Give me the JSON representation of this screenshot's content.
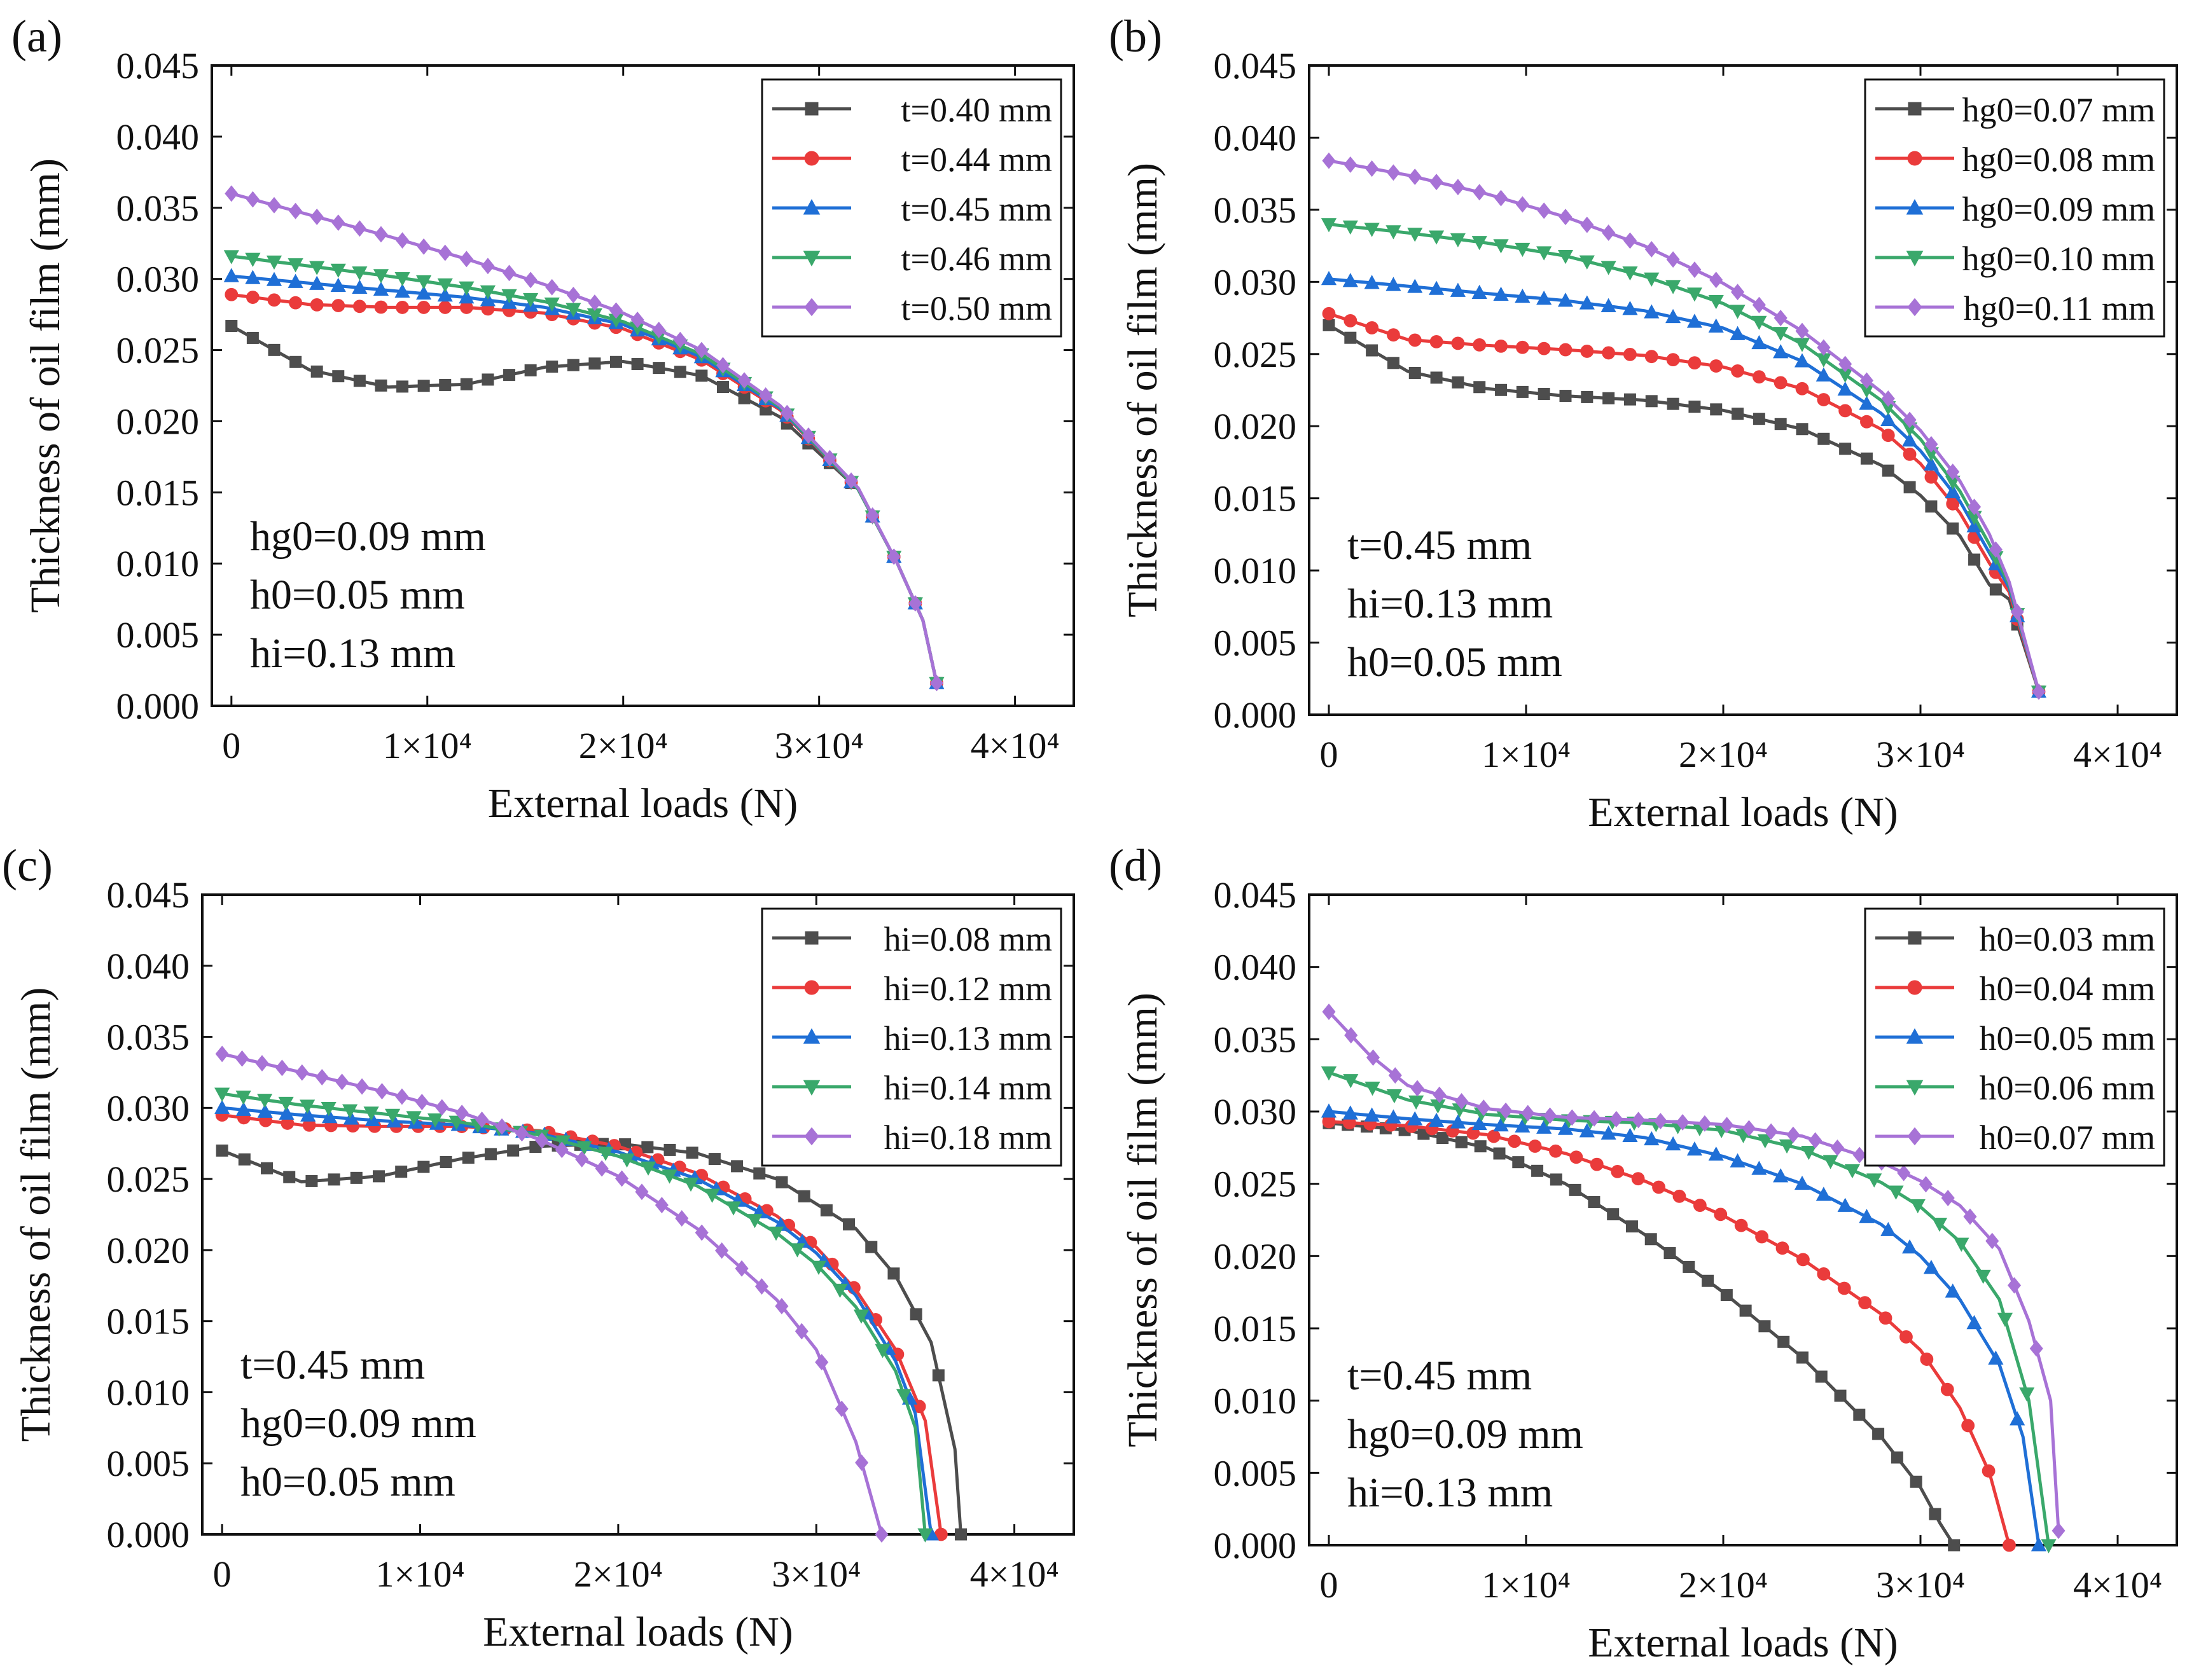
{
  "figure": {
    "xlabel": "External loads (N)",
    "ylabel": "Thickness of oil film (mm)"
  },
  "chart_data": [
    {
      "panel": "(a)",
      "type": "line",
      "xlabel": "External loads (N)",
      "ylabel": "Thickness of oil film (mm)",
      "xlim": [
        -1000,
        43000
      ],
      "ylim": [
        0,
        0.045
      ],
      "xticks": [
        0,
        10000,
        20000,
        30000,
        40000
      ],
      "xtick_labels": [
        "0",
        "1×10⁴",
        "2×10⁴",
        "3×10⁴",
        "4×10⁴"
      ],
      "yticks": [
        0,
        0.005,
        0.01,
        0.015,
        0.02,
        0.025,
        0.03,
        0.035,
        0.04,
        0.045
      ],
      "ytick_labels": [
        "0.000",
        "0.005",
        "0.010",
        "0.015",
        "0.020",
        "0.025",
        "0.030",
        "0.035",
        "0.040",
        "0.045"
      ],
      "annotation": [
        "hg0=0.09 mm",
        "h0=0.05 mm",
        "hi=0.13 mm"
      ],
      "series": [
        {
          "name": "t=0.40 mm",
          "color": "#4d4d4d",
          "marker": "square",
          "x": [
            0,
            4000,
            8000,
            12000,
            16000,
            20000,
            24000,
            28000,
            32000,
            34000,
            35300,
            36000
          ],
          "y": [
            0.0267,
            0.0236,
            0.0224,
            0.0226,
            0.0238,
            0.0242,
            0.0232,
            0.0203,
            0.0152,
            0.01,
            0.006,
            0.0016
          ]
        },
        {
          "name": "t=0.44 mm",
          "color": "#ea3b3b",
          "marker": "circle",
          "x": [
            0,
            4000,
            8000,
            12000,
            16000,
            20000,
            24000,
            28000,
            32000,
            34000,
            35300,
            36000
          ],
          "y": [
            0.0289,
            0.0282,
            0.028,
            0.028,
            0.0276,
            0.0265,
            0.0243,
            0.0208,
            0.0152,
            0.01,
            0.006,
            0.0016
          ]
        },
        {
          "name": "t=0.45 mm",
          "color": "#1f6fd6",
          "marker": "triangle",
          "x": [
            0,
            4000,
            8000,
            12000,
            16000,
            20000,
            24000,
            28000,
            32000,
            34000,
            35300,
            36000
          ],
          "y": [
            0.0302,
            0.0297,
            0.0292,
            0.0287,
            0.028,
            0.0268,
            0.0245,
            0.0209,
            0.0152,
            0.01,
            0.006,
            0.0016
          ]
        },
        {
          "name": "t=0.46 mm",
          "color": "#3aa86b",
          "marker": "triangle-down",
          "x": [
            0,
            4000,
            8000,
            12000,
            16000,
            20000,
            24000,
            28000,
            32000,
            34000,
            35300,
            36000
          ],
          "y": [
            0.0316,
            0.0309,
            0.0302,
            0.0294,
            0.0284,
            0.027,
            0.0247,
            0.021,
            0.0152,
            0.01,
            0.006,
            0.0016
          ]
        },
        {
          "name": "t=0.50 mm",
          "color": "#a772d6",
          "marker": "diamond",
          "x": [
            0,
            4000,
            8000,
            12000,
            16000,
            20000,
            24000,
            28000,
            32000,
            34000,
            35300,
            36000
          ],
          "y": [
            0.036,
            0.0345,
            0.033,
            0.0314,
            0.0296,
            0.0276,
            0.025,
            0.0211,
            0.0153,
            0.01,
            0.006,
            0.0016
          ]
        }
      ]
    },
    {
      "panel": "(b)",
      "type": "line",
      "xlabel": "External loads (N)",
      "ylabel": "Thickness of oil film (mm)",
      "xlim": [
        -1000,
        43000
      ],
      "ylim": [
        0,
        0.045
      ],
      "xticks": [
        0,
        10000,
        20000,
        30000,
        40000
      ],
      "xtick_labels": [
        "0",
        "1×10⁴",
        "2×10⁴",
        "3×10⁴",
        "4×10⁴"
      ],
      "yticks": [
        0,
        0.005,
        0.01,
        0.015,
        0.02,
        0.025,
        0.03,
        0.035,
        0.04,
        0.045
      ],
      "ytick_labels": [
        "0.000",
        "0.005",
        "0.010",
        "0.015",
        "0.020",
        "0.025",
        "0.030",
        "0.035",
        "0.040",
        "0.045"
      ],
      "annotation": [
        "t=0.45 mm",
        "hi=0.13 mm",
        "h0=0.05 mm"
      ],
      "series": [
        {
          "name": "hg0=0.07 mm",
          "color": "#4d4d4d",
          "marker": "square",
          "x": [
            0,
            4000,
            8000,
            12000,
            16000,
            20000,
            24000,
            28000,
            30000,
            32000,
            33500,
            34500,
            36000
          ],
          "y": [
            0.027,
            0.0238,
            0.0226,
            0.0221,
            0.0218,
            0.0211,
            0.0198,
            0.0173,
            0.0152,
            0.0124,
            0.009,
            0.008,
            0.0016
          ]
        },
        {
          "name": "hg0=0.08 mm",
          "color": "#ea3b3b",
          "marker": "circle",
          "x": [
            0,
            4000,
            8000,
            12000,
            16000,
            20000,
            24000,
            28000,
            30000,
            32000,
            33500,
            34500,
            36000
          ],
          "y": [
            0.0278,
            0.026,
            0.0256,
            0.0253,
            0.0249,
            0.0241,
            0.0226,
            0.0198,
            0.0174,
            0.014,
            0.0105,
            0.0085,
            0.0016
          ]
        },
        {
          "name": "hg0=0.09 mm",
          "color": "#1f6fd6",
          "marker": "triangle",
          "x": [
            0,
            4000,
            8000,
            12000,
            16000,
            20000,
            24000,
            28000,
            30000,
            32000,
            33500,
            34500,
            36000
          ],
          "y": [
            0.0302,
            0.0297,
            0.0292,
            0.0287,
            0.028,
            0.0268,
            0.0245,
            0.0209,
            0.0183,
            0.0148,
            0.0112,
            0.0088,
            0.0016
          ]
        },
        {
          "name": "hg0=0.10 mm",
          "color": "#3aa86b",
          "marker": "triangle-down",
          "x": [
            0,
            4000,
            8000,
            12000,
            16000,
            20000,
            24000,
            28000,
            30000,
            32000,
            33500,
            34500,
            36000
          ],
          "y": [
            0.034,
            0.0334,
            0.0327,
            0.0318,
            0.0304,
            0.0285,
            0.0257,
            0.0218,
            0.0191,
            0.0155,
            0.0118,
            0.009,
            0.0016
          ]
        },
        {
          "name": "hg0=0.11 mm",
          "color": "#a772d6",
          "marker": "diamond",
          "x": [
            0,
            4000,
            8000,
            12000,
            16000,
            20000,
            24000,
            28000,
            30000,
            32000,
            33500,
            34500,
            36000
          ],
          "y": [
            0.0384,
            0.0374,
            0.0361,
            0.0345,
            0.0325,
            0.0299,
            0.0266,
            0.0224,
            0.0197,
            0.0162,
            0.0125,
            0.0092,
            0.0016
          ]
        }
      ]
    },
    {
      "panel": "(c)",
      "type": "line",
      "xlabel": "External loads (N)",
      "ylabel": "Thickness of oil film (mm)",
      "xlim": [
        -1000,
        43000
      ],
      "ylim": [
        0,
        0.045
      ],
      "xticks": [
        0,
        10000,
        20000,
        30000,
        40000
      ],
      "xtick_labels": [
        "0",
        "1×10⁴",
        "2×10⁴",
        "3×10⁴",
        "4×10⁴"
      ],
      "yticks": [
        0,
        0.005,
        0.01,
        0.015,
        0.02,
        0.025,
        0.03,
        0.035,
        0.04,
        0.045
      ],
      "ytick_labels": [
        "0.000",
        "0.005",
        "0.010",
        "0.015",
        "0.020",
        "0.025",
        "0.030",
        "0.035",
        "0.040",
        "0.045"
      ],
      "annotation": [
        "t=0.45 mm",
        "hg0=0.09 mm",
        "h0=0.05 mm"
      ],
      "series": [
        {
          "name": "hi=0.08 mm",
          "color": "#4d4d4d",
          "marker": "square",
          "x": [
            0,
            4000,
            8000,
            12000,
            16000,
            20000,
            24000,
            28000,
            32000,
            34000,
            35800,
            37000,
            37300
          ],
          "y": [
            0.027,
            0.0248,
            0.0252,
            0.0264,
            0.0273,
            0.0275,
            0.0268,
            0.025,
            0.0215,
            0.0182,
            0.0135,
            0.006,
            0.0
          ]
        },
        {
          "name": "hi=0.12 mm",
          "color": "#ea3b3b",
          "marker": "circle",
          "x": [
            0,
            4000,
            8000,
            12000,
            16000,
            20000,
            24000,
            28000,
            30000,
            32000,
            34000,
            35500,
            36300
          ],
          "y": [
            0.0295,
            0.0288,
            0.0287,
            0.0287,
            0.0284,
            0.0273,
            0.0254,
            0.0224,
            0.0202,
            0.0172,
            0.013,
            0.008,
            0.0
          ]
        },
        {
          "name": "hi=0.13 mm",
          "color": "#1f6fd6",
          "marker": "triangle",
          "x": [
            0,
            4000,
            8000,
            12000,
            16000,
            20000,
            24000,
            28000,
            30000,
            32000,
            34000,
            35000,
            35800
          ],
          "y": [
            0.03,
            0.0295,
            0.0291,
            0.0288,
            0.0282,
            0.0269,
            0.025,
            0.022,
            0.0198,
            0.0168,
            0.0122,
            0.0085,
            0.0
          ]
        },
        {
          "name": "hi=0.14 mm",
          "color": "#3aa86b",
          "marker": "triangle-down",
          "x": [
            0,
            4000,
            8000,
            12000,
            16000,
            20000,
            24000,
            28000,
            30000,
            32000,
            34000,
            35000,
            35500
          ],
          "y": [
            0.031,
            0.0302,
            0.0296,
            0.029,
            0.0281,
            0.0266,
            0.0245,
            0.0212,
            0.019,
            0.016,
            0.0115,
            0.0075,
            0.0
          ]
        },
        {
          "name": "hi=0.18 mm",
          "color": "#a772d6",
          "marker": "diamond",
          "x": [
            0,
            4000,
            8000,
            12000,
            16000,
            20000,
            24000,
            28000,
            30000,
            32000,
            33300
          ],
          "y": [
            0.0338,
            0.0325,
            0.0312,
            0.0297,
            0.0278,
            0.0252,
            0.0215,
            0.0165,
            0.013,
            0.0065,
            0.0
          ]
        }
      ]
    },
    {
      "panel": "(d)",
      "type": "line",
      "xlabel": "External loads (N)",
      "ylabel": "Thickness of oil film (mm)",
      "xlim": [
        -1000,
        43000
      ],
      "ylim": [
        0,
        0.045
      ],
      "xticks": [
        0,
        10000,
        20000,
        30000,
        40000
      ],
      "xtick_labels": [
        "0",
        "1×10⁴",
        "2×10⁴",
        "3×10⁴",
        "4×10⁴"
      ],
      "yticks": [
        0,
        0.005,
        0.01,
        0.015,
        0.02,
        0.025,
        0.03,
        0.035,
        0.04,
        0.045
      ],
      "ytick_labels": [
        "0.000",
        "0.005",
        "0.010",
        "0.015",
        "0.020",
        "0.025",
        "0.030",
        "0.035",
        "0.040",
        "0.045"
      ],
      "annotation": [
        "t=0.45 mm",
        "hg0=0.09 mm",
        "hi=0.13 mm"
      ],
      "series": [
        {
          "name": "h0=0.03 mm",
          "color": "#4d4d4d",
          "marker": "square",
          "x": [
            0,
            4000,
            8000,
            12000,
            16000,
            20000,
            24000,
            28000,
            30000,
            31000,
            31700
          ],
          "y": [
            0.0292,
            0.0287,
            0.0275,
            0.025,
            0.0215,
            0.0175,
            0.013,
            0.0075,
            0.004,
            0.0015,
            0.0
          ]
        },
        {
          "name": "h0=0.04 mm",
          "color": "#ea3b3b",
          "marker": "circle",
          "x": [
            0,
            4000,
            8000,
            12000,
            16000,
            20000,
            24000,
            28000,
            30000,
            32000,
            33500,
            34500
          ],
          "y": [
            0.0293,
            0.029,
            0.0284,
            0.0271,
            0.0252,
            0.0228,
            0.0198,
            0.016,
            0.0135,
            0.0095,
            0.005,
            0.0
          ]
        },
        {
          "name": "h0=0.05 mm",
          "color": "#1f6fd6",
          "marker": "triangle",
          "x": [
            0,
            4000,
            8000,
            12000,
            16000,
            20000,
            24000,
            28000,
            30000,
            32000,
            34000,
            35200,
            36000
          ],
          "y": [
            0.03,
            0.0295,
            0.0291,
            0.0288,
            0.0282,
            0.0269,
            0.025,
            0.0222,
            0.02,
            0.017,
            0.0125,
            0.0075,
            0.0
          ]
        },
        {
          "name": "h0=0.06 mm",
          "color": "#3aa86b",
          "marker": "triangle-down",
          "x": [
            0,
            4000,
            8000,
            12000,
            16000,
            20000,
            24000,
            28000,
            30000,
            32000,
            34000,
            35500,
            36500
          ],
          "y": [
            0.0327,
            0.0308,
            0.0298,
            0.0294,
            0.0292,
            0.0287,
            0.0274,
            0.0251,
            0.0234,
            0.021,
            0.017,
            0.01,
            0.0
          ]
        },
        {
          "name": "h0=0.07 mm",
          "color": "#a772d6",
          "marker": "diamond",
          "x": [
            0,
            2000,
            4000,
            8000,
            12000,
            16000,
            20000,
            24000,
            28000,
            30000,
            32000,
            34000,
            35500,
            36600,
            37000
          ],
          "y": [
            0.0369,
            0.034,
            0.0318,
            0.0302,
            0.0296,
            0.0294,
            0.0291,
            0.0283,
            0.0265,
            0.0252,
            0.0235,
            0.0205,
            0.0155,
            0.01,
            0.001
          ]
        }
      ]
    }
  ]
}
